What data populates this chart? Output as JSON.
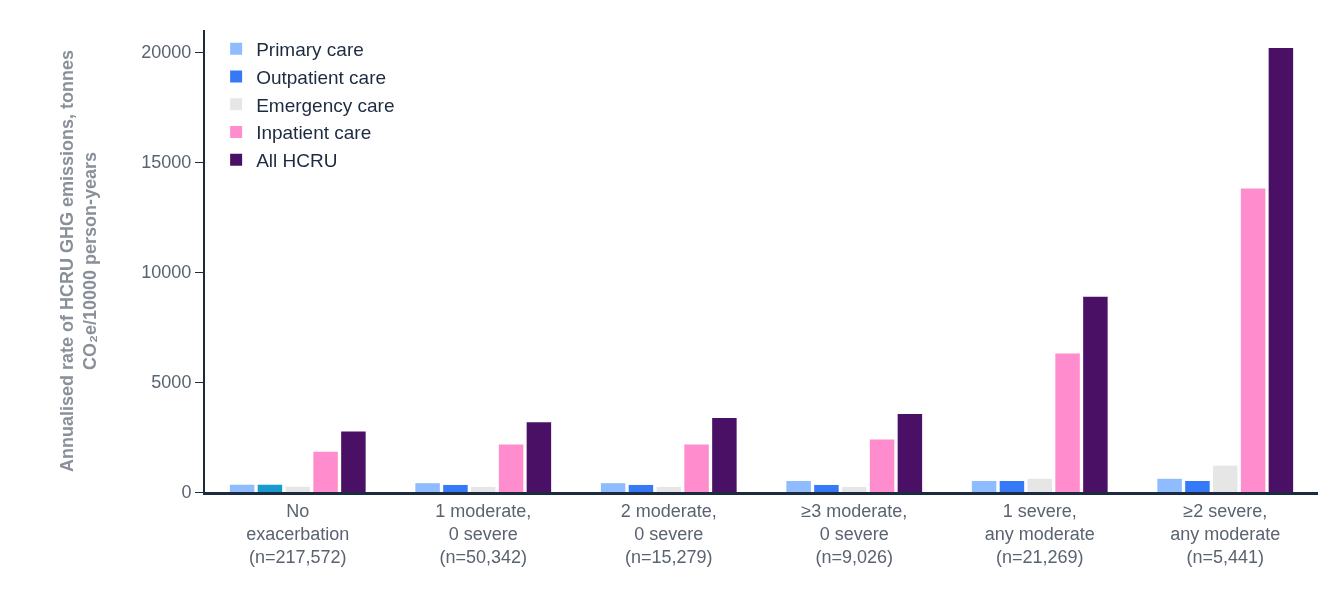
{
  "chart_data": {
    "type": "bar",
    "ylabel": "Annualised rate of HCRU GHG emissions, tonnes CO₂e/10000 person-years",
    "categories": [
      "No exacerbation (n=217,572)",
      "1 moderate, 0 severe (n=50,342)",
      "2 moderate, 0 severe (n=15,279)",
      "≥3 moderate, 0 severe (n=9,026)",
      "1 severe, any moderate (n=21,269)",
      "≥2 severe, any moderate (n=5,441)"
    ],
    "series": [
      {
        "name": "Primary care",
        "color": "#8fbcff",
        "values": [
          330,
          400,
          400,
          500,
          500,
          600
        ]
      },
      {
        "name": "Outpatient care",
        "color": "#3579f6",
        "colors": [
          "#1a9bd0",
          "#3579f6",
          "#3579f6",
          "#3579f6",
          "#3579f6",
          "#3579f6"
        ],
        "values": [
          330,
          320,
          320,
          320,
          500,
          500
        ]
      },
      {
        "name": "Emergency care",
        "color": "#e6e6e6",
        "values": [
          240,
          230,
          230,
          230,
          600,
          1200
        ]
      },
      {
        "name": "Inpatient care",
        "color": "#ff8ccc",
        "values": [
          1830,
          2160,
          2160,
          2390,
          6300,
          13790
        ]
      },
      {
        "name": "All HCRU",
        "color": "#4a1066",
        "values": [
          2750,
          3170,
          3360,
          3540,
          8870,
          20180
        ]
      }
    ],
    "ylim": [
      0,
      21000
    ],
    "yticks": [
      0,
      5000,
      10000,
      15000,
      20000
    ],
    "grid": false,
    "legend": "top left"
  }
}
